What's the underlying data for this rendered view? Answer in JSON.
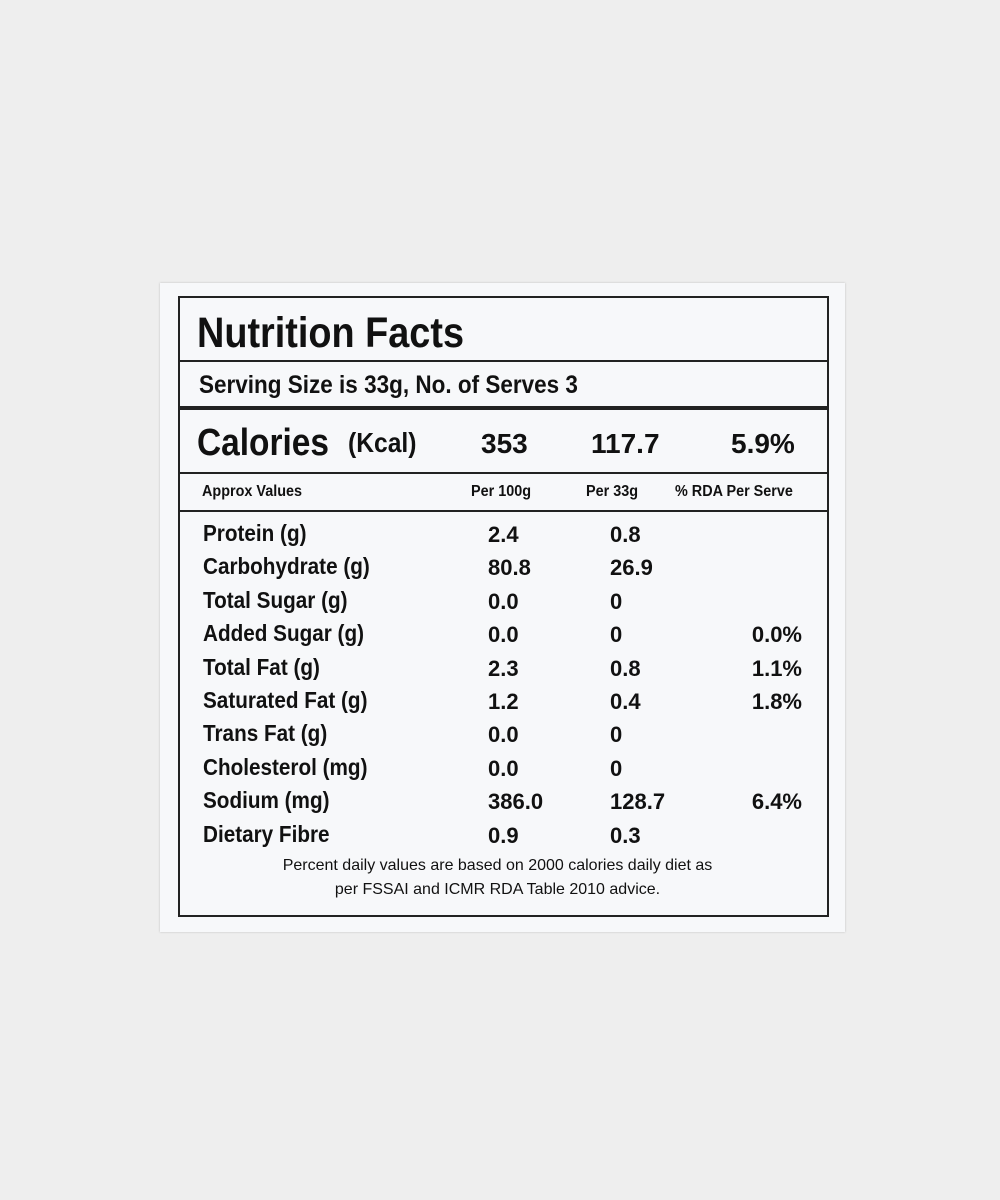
{
  "title": "Nutrition Facts",
  "serving": "Serving Size is 33g, No. of Serves 3",
  "calories": {
    "label": "Calories",
    "unit": "(Kcal)",
    "values": [
      "353",
      "117.7",
      "5.9%"
    ]
  },
  "header": [
    "Approx Values",
    "Per 100g",
    "Per 33g",
    "% RDA Per Serve"
  ],
  "rows": [
    [
      "Protein (g)",
      "2.4",
      "0.8"
    ],
    [
      "Carbohydrate (g)",
      "80.8",
      "26.9"
    ],
    [
      "Total Sugar (g)",
      "0.0",
      "0"
    ],
    [
      "Added Sugar (g)",
      "0.0",
      "0",
      "0.0%"
    ],
    [
      "Total Fat (g)",
      "2.3",
      "0.8",
      "1.1%"
    ],
    [
      "Saturated Fat (g)",
      "1.2",
      "0.4",
      "1.8%"
    ],
    [
      "Trans Fat (g)",
      "0.0",
      "0"
    ],
    [
      "Cholesterol (mg)",
      "0.0",
      "0"
    ],
    [
      "Sodium (mg)",
      "386.0",
      "128.7",
      "6.4%"
    ],
    [
      "Dietary Fibre",
      "0.9",
      "0.3"
    ]
  ],
  "footnote": [
    "Percent daily values are based on 2000 calories daily diet as",
    "per FSSAI and ICMR RDA Table 2010 advice."
  ]
}
